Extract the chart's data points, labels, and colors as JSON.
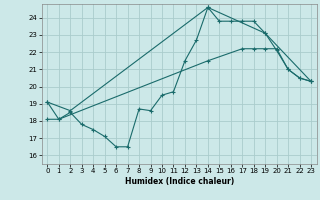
{
  "xlabel": "Humidex (Indice chaleur)",
  "bg_color": "#cce8e8",
  "grid_color": "#aacccc",
  "line_color": "#1a6b6b",
  "xlim": [
    -0.5,
    23.5
  ],
  "ylim": [
    15.5,
    24.8
  ],
  "xticks": [
    0,
    1,
    2,
    3,
    4,
    5,
    6,
    7,
    8,
    9,
    10,
    11,
    12,
    13,
    14,
    15,
    16,
    17,
    18,
    19,
    20,
    21,
    22,
    23
  ],
  "yticks": [
    16,
    17,
    18,
    19,
    20,
    21,
    22,
    23,
    24
  ],
  "line1_x": [
    0,
    1,
    2,
    3,
    4,
    5,
    6,
    7,
    8,
    9,
    10,
    11,
    12,
    13,
    14,
    15,
    16,
    17,
    18,
    19,
    20,
    21,
    22,
    23
  ],
  "line1_y": [
    19.1,
    18.1,
    18.5,
    17.8,
    17.5,
    17.1,
    16.5,
    16.5,
    18.7,
    18.6,
    19.5,
    19.7,
    21.5,
    22.7,
    24.6,
    23.8,
    23.8,
    23.8,
    23.8,
    23.1,
    22.1,
    21.0,
    20.5,
    20.3
  ],
  "line2_x": [
    0,
    2,
    14,
    19,
    23
  ],
  "line2_y": [
    19.1,
    18.6,
    24.6,
    23.1,
    20.3
  ],
  "line3_x": [
    0,
    1,
    14,
    17,
    18,
    19,
    20,
    21,
    22,
    23
  ],
  "line3_y": [
    18.1,
    18.1,
    21.5,
    22.2,
    22.2,
    22.2,
    22.2,
    21.0,
    20.5,
    20.3
  ]
}
